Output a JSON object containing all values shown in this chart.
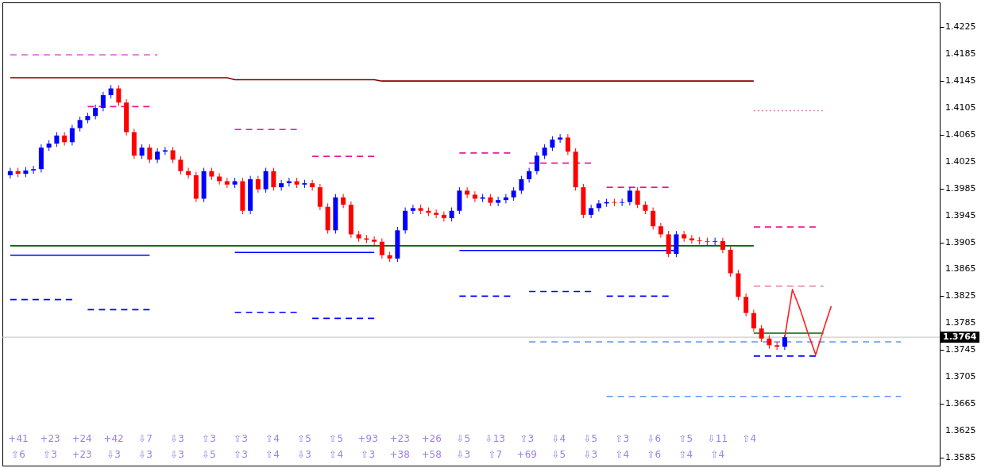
{
  "chart_data": {
    "type": "candlestick",
    "categories": [
      null,
      null,
      null,
      null,
      null,
      null,
      null,
      null,
      null,
      null,
      null,
      null,
      null,
      null,
      null,
      null,
      null,
      null,
      null,
      null,
      null,
      null,
      null,
      null,
      null,
      null,
      null,
      null,
      null,
      null,
      null,
      null,
      null,
      null,
      null,
      null,
      null,
      null,
      null,
      null,
      null,
      null,
      null,
      null,
      null,
      null,
      null,
      null,
      null,
      null,
      null,
      null,
      null,
      null,
      null,
      null,
      null,
      null,
      null,
      null,
      null,
      null,
      null,
      null,
      null,
      null,
      null,
      null,
      null,
      null,
      null,
      null,
      null,
      null,
      null,
      null,
      null,
      null,
      null,
      null,
      null,
      null,
      null,
      null,
      null,
      null,
      null,
      null,
      null,
      null,
      null,
      null,
      null,
      null,
      null,
      null,
      null,
      null,
      null,
      null,
      null,
      null,
      null,
      null,
      null,
      null,
      null,
      null,
      null,
      null,
      null,
      null,
      null,
      null,
      null,
      null,
      null,
      null,
      null,
      null
    ],
    "colors": [
      "#0000ff",
      "#ff0000",
      "#0000ff",
      "#0000ff",
      "#0000ff",
      "#0000ff",
      "#0000ff",
      "#ff0000",
      "#0000ff",
      "#0000ff",
      "#0000ff",
      "#0000ff",
      "#0000ff",
      "#0000ff",
      "#ff0000",
      "#ff0000",
      "#ff0000",
      "#0000ff",
      "#ff0000",
      "#0000ff",
      "#0000ff",
      "#ff0000",
      "#ff0000",
      "#ff0000",
      "#ff0000",
      "#0000ff",
      "#ff0000",
      "#ff0000",
      "#ff0000",
      "#0000ff",
      "#ff0000",
      "#0000ff",
      "#ff0000",
      "#0000ff",
      "#ff0000",
      "#0000ff",
      "#0000ff",
      "#ff0000",
      "#0000ff",
      "#ff0000",
      "#ff0000",
      "#ff0000",
      "#0000ff",
      "#ff0000",
      "#ff0000",
      "#ff0000",
      "#ff0000",
      "#ff0000",
      "#ff0000",
      "#ff0000",
      "#0000ff",
      "#0000ff",
      "#0000ff",
      "#ff0000",
      "#ff0000",
      "#ff0000",
      "#ff0000",
      "#0000ff",
      "#0000ff",
      "#ff0000",
      "#ff0000",
      "#0000ff",
      "#ff0000",
      "#0000ff",
      "#0000ff",
      "#0000ff",
      "#0000ff",
      "#0000ff",
      "#0000ff",
      "#0000ff",
      "#0000ff",
      "#0000ff",
      "#ff0000",
      "#ff0000",
      "#ff0000",
      "#0000ff",
      "#0000ff",
      "#0000ff",
      "#ff0000",
      "#0000ff",
      "#0000ff",
      "#ff0000",
      "#ff0000",
      "#ff0000",
      "#ff0000",
      "#ff0000",
      "#0000ff",
      "#ff0000",
      "#ff0000",
      "#ff0000",
      "#ff0000",
      "#0000ff",
      "#ff0000",
      "#ff0000",
      "#ff0000",
      "#ff0000",
      "#ff0000",
      "#ff0000",
      "#ff0000",
      "#ff0000",
      "#0000ff",
      null,
      null,
      null,
      null,
      null,
      null,
      null,
      null,
      null,
      null,
      null,
      null,
      null,
      null,
      null,
      null,
      null,
      null,
      null
    ],
    "ohlc": [
      [
        1.4005,
        1.4016,
        1.4,
        1.4011
      ],
      [
        1.4011,
        1.4016,
        1.4002,
        1.4007
      ],
      [
        1.4007,
        1.4017,
        1.4002,
        1.4012
      ],
      [
        1.4012,
        1.4019,
        1.4007,
        1.4014
      ],
      [
        1.4014,
        1.4051,
        1.4009,
        1.4046
      ],
      [
        1.4046,
        1.4057,
        1.4041,
        1.4052
      ],
      [
        1.4052,
        1.4069,
        1.4047,
        1.4064
      ],
      [
        1.4064,
        1.4069,
        1.4049,
        1.4054
      ],
      [
        1.4054,
        1.408,
        1.4049,
        1.4075
      ],
      [
        1.4075,
        1.4092,
        1.407,
        1.4087
      ],
      [
        1.4087,
        1.4098,
        1.4082,
        1.4093
      ],
      [
        1.4093,
        1.411,
        1.4088,
        1.4105
      ],
      [
        1.4105,
        1.4129,
        1.41,
        1.4124
      ],
      [
        1.4124,
        1.4139,
        1.4119,
        1.4134
      ],
      [
        1.4134,
        1.4139,
        1.4108,
        1.4113
      ],
      [
        1.4113,
        1.4118,
        1.4064,
        1.4069
      ],
      [
        1.4069,
        1.4074,
        1.4029,
        1.4034
      ],
      [
        1.4034,
        1.4051,
        1.4029,
        1.4046
      ],
      [
        1.4046,
        1.4051,
        1.4023,
        1.4028
      ],
      [
        1.4028,
        1.4045,
        1.4023,
        1.404
      ],
      [
        1.404,
        1.4047,
        1.4035,
        1.4042
      ],
      [
        1.4042,
        1.4047,
        1.4023,
        1.4028
      ],
      [
        1.4028,
        1.4033,
        1.4006,
        1.4011
      ],
      [
        1.4011,
        1.4016,
        1.4,
        1.4005
      ],
      [
        1.4005,
        1.401,
        1.3965,
        1.397
      ],
      [
        1.397,
        1.4016,
        1.3965,
        1.4011
      ],
      [
        1.4011,
        1.4016,
        1.3998,
        1.4003
      ],
      [
        1.4003,
        1.4008,
        1.3991,
        1.3996
      ],
      [
        1.3996,
        1.4001,
        1.3986,
        1.3991
      ],
      [
        1.3991,
        1.4001,
        1.3986,
        1.3996
      ],
      [
        1.3996,
        1.4001,
        1.3947,
        1.3952
      ],
      [
        1.3952,
        1.4004,
        1.3947,
        1.3999
      ],
      [
        1.3999,
        1.4004,
        1.3979,
        1.3984
      ],
      [
        1.3984,
        1.4016,
        1.3979,
        1.4011
      ],
      [
        1.4011,
        1.4016,
        1.3982,
        1.3987
      ],
      [
        1.3987,
        1.3998,
        1.3982,
        1.3993
      ],
      [
        1.3993,
        1.4001,
        1.3988,
        1.3996
      ],
      [
        1.3996,
        1.4001,
        1.3986,
        1.3991
      ],
      [
        1.3991,
        1.3998,
        1.3986,
        1.3993
      ],
      [
        1.3993,
        1.3998,
        1.3982,
        1.3987
      ],
      [
        1.3987,
        1.3992,
        1.3953,
        1.3958
      ],
      [
        1.3958,
        1.3963,
        1.3918,
        1.3923
      ],
      [
        1.3923,
        1.3977,
        1.3918,
        1.3972
      ],
      [
        1.3972,
        1.3977,
        1.3956,
        1.3961
      ],
      [
        1.3961,
        1.3966,
        1.3912,
        1.3917
      ],
      [
        1.3917,
        1.3922,
        1.3906,
        1.3911
      ],
      [
        1.3911,
        1.3916,
        1.3904,
        1.3909
      ],
      [
        1.3909,
        1.3914,
        1.3901,
        1.3906
      ],
      [
        1.3906,
        1.3911,
        1.3881,
        1.3886
      ],
      [
        1.3886,
        1.3891,
        1.3876,
        1.3881
      ],
      [
        1.3881,
        1.3928,
        1.3876,
        1.3923
      ],
      [
        1.3923,
        1.3957,
        1.3918,
        1.3952
      ],
      [
        1.3952,
        1.3961,
        1.3947,
        1.3956
      ],
      [
        1.3956,
        1.3961,
        1.3947,
        1.3952
      ],
      [
        1.3952,
        1.3957,
        1.3944,
        1.3949
      ],
      [
        1.3949,
        1.3954,
        1.3941,
        1.3946
      ],
      [
        1.3946,
        1.3951,
        1.3936,
        1.3941
      ],
      [
        1.3941,
        1.3957,
        1.3936,
        1.3952
      ],
      [
        1.3952,
        1.3987,
        1.3947,
        1.3982
      ],
      [
        1.3982,
        1.3987,
        1.3971,
        1.3976
      ],
      [
        1.3976,
        1.3981,
        1.3965,
        1.397
      ],
      [
        1.397,
        1.3977,
        1.3965,
        1.3972
      ],
      [
        1.3972,
        1.3977,
        1.3959,
        1.3964
      ],
      [
        1.3964,
        1.3973,
        1.3959,
        1.3968
      ],
      [
        1.3968,
        1.3977,
        1.3963,
        1.3972
      ],
      [
        1.3972,
        1.3987,
        1.3967,
        1.3982
      ],
      [
        1.3982,
        1.4004,
        1.3977,
        1.3999
      ],
      [
        1.3999,
        1.4016,
        1.3994,
        1.4011
      ],
      [
        1.4011,
        1.4039,
        1.4006,
        1.4034
      ],
      [
        1.4034,
        1.4051,
        1.4029,
        1.4046
      ],
      [
        1.4046,
        1.4063,
        1.4041,
        1.4058
      ],
      [
        1.4058,
        1.4066,
        1.4053,
        1.4061
      ],
      [
        1.4061,
        1.4066,
        1.4035,
        1.404
      ],
      [
        1.404,
        1.4045,
        1.3982,
        1.3987
      ],
      [
        1.3987,
        1.3992,
        1.3941,
        1.3946
      ],
      [
        1.3946,
        1.3961,
        1.3941,
        1.3956
      ],
      [
        1.3956,
        1.3968,
        1.3951,
        1.3963
      ],
      [
        1.3963,
        1.397,
        1.3958,
        1.3965
      ],
      [
        1.3965,
        1.397,
        1.3959,
        1.3964
      ],
      [
        1.3964,
        1.397,
        1.3959,
        1.3965
      ],
      [
        1.3965,
        1.3987,
        1.396,
        1.3982
      ],
      [
        1.3982,
        1.3987,
        1.3956,
        1.3961
      ],
      [
        1.3961,
        1.3966,
        1.3947,
        1.3952
      ],
      [
        1.3952,
        1.3957,
        1.3924,
        1.3929
      ],
      [
        1.3929,
        1.3934,
        1.3912,
        1.3917
      ],
      [
        1.3917,
        1.3922,
        1.3883,
        1.3888
      ],
      [
        1.3888,
        1.3922,
        1.3883,
        1.3917
      ],
      [
        1.3917,
        1.3922,
        1.3906,
        1.3911
      ],
      [
        1.3911,
        1.3916,
        1.3903,
        1.3908
      ],
      [
        1.3908,
        1.3913,
        1.3902,
        1.3907
      ],
      [
        1.3907,
        1.3912,
        1.3901,
        1.3906
      ],
      [
        1.3906,
        1.3912,
        1.3901,
        1.3907
      ],
      [
        1.3907,
        1.3912,
        1.3889,
        1.3894
      ],
      [
        1.3894,
        1.3899,
        1.3854,
        1.3859
      ],
      [
        1.3859,
        1.3864,
        1.3819,
        1.3824
      ],
      [
        1.3824,
        1.3829,
        1.3795,
        1.38
      ],
      [
        1.38,
        1.3805,
        1.3772,
        1.3777
      ],
      [
        1.3777,
        1.3782,
        1.3757,
        1.3762
      ],
      [
        1.3762,
        1.3767,
        1.3747,
        1.3752
      ],
      [
        1.3752,
        1.3757,
        1.3745,
        1.375
      ],
      [
        1.375,
        1.3767,
        1.3745,
        1.3764
      ],
      null,
      null,
      null,
      null,
      null,
      null,
      null,
      null,
      null,
      null,
      null,
      null,
      null,
      null,
      null,
      null,
      null,
      null,
      null
    ],
    "series": [
      {
        "type": "line",
        "color": "#800000",
        "line_style": "solid",
        "values": [
          1.415,
          1.415,
          1.415,
          1.415,
          1.415,
          1.415,
          1.415,
          1.415,
          1.415,
          1.415,
          1.415,
          1.415,
          1.415,
          1.415,
          1.415,
          1.415,
          1.415,
          1.415,
          1.415,
          1.415,
          1.415,
          1.415,
          1.415,
          1.415,
          1.415,
          1.415,
          1.415,
          1.415,
          1.415,
          1.4147,
          1.4147,
          1.4147,
          1.4147,
          1.4147,
          1.4147,
          1.4147,
          1.4147,
          1.4147,
          1.4147,
          1.4147,
          1.4147,
          1.4147,
          1.4147,
          1.4147,
          1.4147,
          1.4147,
          1.4147,
          1.4147,
          1.4145,
          1.4145,
          1.4145,
          1.4145,
          1.4145,
          1.4145,
          1.4145,
          1.4145,
          1.4145,
          1.4145,
          1.4145,
          1.4145,
          1.4145,
          1.4145,
          1.4145,
          1.4145,
          1.4145,
          1.4145,
          1.4145,
          1.4145,
          1.4145,
          1.4145,
          1.4145,
          1.4145,
          1.4145,
          1.4145,
          1.4145,
          1.4145,
          1.4145,
          1.4145,
          1.4145,
          1.4145,
          1.4145,
          1.4145,
          1.4145,
          1.4145,
          1.4145,
          1.4145,
          1.4145,
          1.4145,
          1.4145,
          1.4145,
          1.4145,
          1.4145,
          1.4145,
          1.4145,
          1.4145,
          1.4145,
          1.4145,
          null,
          null,
          null,
          null,
          null,
          null,
          null,
          null,
          null,
          null,
          null,
          null,
          null,
          null,
          null,
          null,
          null,
          null,
          null,
          null,
          null,
          null,
          null
        ]
      },
      {
        "type": "line",
        "color": "#006400",
        "line_style": "solid",
        "values": [
          1.39,
          1.39,
          1.39,
          1.39,
          1.39,
          1.39,
          1.39,
          1.39,
          1.39,
          1.39,
          1.39,
          1.39,
          1.39,
          1.39,
          1.39,
          1.39,
          1.39,
          1.39,
          1.39,
          1.39,
          1.39,
          1.39,
          1.39,
          1.39,
          1.39,
          1.39,
          1.39,
          1.39,
          1.39,
          1.39,
          1.39,
          1.39,
          1.39,
          1.39,
          1.39,
          1.39,
          1.39,
          1.39,
          1.39,
          1.39,
          1.39,
          1.39,
          1.39,
          1.39,
          1.39,
          1.39,
          1.39,
          1.39,
          1.39,
          1.39,
          1.39,
          1.39,
          1.39,
          1.39,
          1.39,
          1.39,
          1.39,
          1.39,
          1.39,
          1.39,
          1.39,
          1.39,
          1.39,
          1.39,
          1.39,
          1.39,
          1.39,
          1.39,
          1.39,
          1.39,
          1.39,
          1.39,
          1.39,
          1.39,
          1.39,
          1.39,
          1.39,
          1.39,
          1.39,
          1.39,
          1.39,
          1.39,
          1.39,
          1.39,
          1.39,
          1.39,
          1.39,
          1.39,
          1.39,
          1.39,
          1.39,
          1.39,
          1.39,
          1.39,
          1.39,
          1.39,
          1.39,
          null,
          null,
          null,
          null,
          null,
          null,
          null,
          null,
          null,
          null,
          null,
          null,
          null,
          null,
          null,
          null,
          null,
          null,
          null,
          null,
          null,
          null,
          null
        ]
      },
      {
        "type": "line",
        "color": "#e8189a",
        "line_style": "dashed",
        "values": [
          null,
          null,
          null,
          null,
          null,
          null,
          null,
          null,
          null,
          null,
          1.4107,
          1.4107,
          1.4107,
          1.4107,
          1.4107,
          1.4107,
          1.4107,
          1.4107,
          1.4107,
          null,
          null,
          null,
          null,
          null,
          null,
          null,
          null,
          null,
          null,
          1.4073,
          1.4073,
          1.4073,
          1.4073,
          1.4073,
          1.4073,
          1.4073,
          1.4073,
          1.4073,
          null,
          1.4033,
          1.4033,
          1.4033,
          1.4033,
          1.4033,
          1.4033,
          1.4033,
          1.4033,
          1.4033,
          null,
          null,
          null,
          null,
          null,
          null,
          null,
          null,
          null,
          null,
          1.4038,
          1.4038,
          1.4038,
          1.4038,
          1.4038,
          1.4038,
          1.4038,
          1.4038,
          null,
          1.4023,
          1.4023,
          1.4023,
          1.4023,
          1.4023,
          1.4023,
          1.4023,
          1.4023,
          1.4023,
          null,
          1.3987,
          1.3987,
          1.3987,
          1.3987,
          1.3987,
          1.3987,
          1.3987,
          1.3987,
          1.3987,
          null,
          null,
          null,
          null,
          null,
          null,
          null,
          null,
          null,
          null,
          1.3928,
          1.3928,
          1.3928,
          1.3928,
          1.3928,
          1.3928,
          1.3928,
          1.3928,
          1.3928,
          null,
          null,
          null,
          null,
          null,
          null,
          null,
          null,
          null,
          null,
          null,
          null,
          null,
          null,
          null
        ]
      },
      {
        "type": "line",
        "color": "#0000ff",
        "line_style": "dashed",
        "values": [
          1.382,
          1.382,
          1.382,
          1.382,
          1.382,
          1.382,
          1.382,
          1.382,
          1.382,
          null,
          1.3805,
          1.3805,
          1.3805,
          1.3805,
          1.3805,
          1.3805,
          1.3805,
          1.3805,
          1.3805,
          null,
          null,
          null,
          null,
          null,
          null,
          null,
          null,
          null,
          null,
          1.3801,
          1.3801,
          1.3801,
          1.3801,
          1.3801,
          1.3801,
          1.3801,
          1.3801,
          1.3801,
          null,
          1.3792,
          1.3792,
          1.3792,
          1.3792,
          1.3792,
          1.3792,
          1.3792,
          1.3792,
          1.3792,
          null,
          null,
          null,
          null,
          null,
          null,
          null,
          null,
          null,
          null,
          1.3825,
          1.3825,
          1.3825,
          1.3825,
          1.3825,
          1.3825,
          1.3825,
          1.3825,
          null,
          1.3832,
          1.3832,
          1.3832,
          1.3832,
          1.3832,
          1.3832,
          1.3832,
          1.3832,
          1.3832,
          null,
          1.3825,
          1.3825,
          1.3825,
          1.3825,
          1.3825,
          1.3825,
          1.3825,
          1.3825,
          1.3825,
          null,
          null,
          null,
          null,
          null,
          null,
          null,
          null,
          null,
          null,
          1.3736,
          1.3736,
          1.3736,
          1.3736,
          1.3736,
          1.3736,
          1.3736,
          1.3736,
          1.3736,
          null,
          null,
          null,
          null,
          null,
          null,
          null,
          null,
          null,
          null,
          null,
          null,
          null,
          null,
          null
        ]
      },
      {
        "type": "line",
        "color": "#0000ff",
        "line_style": "solid",
        "values": [
          1.3886,
          1.3886,
          1.3886,
          1.3886,
          1.3886,
          1.3886,
          1.3886,
          1.3886,
          1.3886,
          1.3886,
          1.3886,
          1.3886,
          1.3886,
          1.3886,
          1.3886,
          1.3886,
          1.3886,
          1.3886,
          1.3886,
          null,
          null,
          null,
          null,
          null,
          null,
          null,
          null,
          null,
          null,
          1.389,
          1.389,
          1.389,
          1.389,
          1.389,
          1.389,
          1.389,
          1.389,
          1.389,
          1.389,
          1.389,
          1.389,
          1.389,
          1.389,
          1.389,
          1.389,
          1.389,
          1.389,
          1.389,
          null,
          null,
          null,
          null,
          null,
          null,
          null,
          null,
          null,
          null,
          1.3893,
          1.3893,
          1.3893,
          1.3893,
          1.3893,
          1.3893,
          1.3893,
          1.3893,
          1.3893,
          1.3893,
          1.3893,
          1.3893,
          1.3893,
          1.3893,
          1.3893,
          1.3893,
          1.3893,
          1.3893,
          1.3893,
          1.3893,
          1.3893,
          1.3893,
          1.3893,
          1.3893,
          1.3893,
          1.3893,
          1.3893,
          1.3893,
          1.3893,
          null,
          null,
          null,
          null,
          null,
          null,
          null,
          null,
          null,
          null,
          null,
          null,
          null,
          null,
          null,
          null,
          null,
          null,
          null,
          null,
          null,
          null,
          null,
          null,
          null,
          null,
          null,
          null,
          null,
          null,
          null,
          null,
          null
        ]
      },
      {
        "type": "line",
        "color": "#da70d6",
        "line_style": "dashed",
        "values": [
          1.4184,
          1.4184,
          1.4184,
          1.4184,
          1.4184,
          1.4184,
          1.4184,
          1.4184,
          1.4184,
          1.4184,
          1.4184,
          1.4184,
          1.4184,
          1.4184,
          1.4184,
          1.4184,
          1.4184,
          1.4184,
          1.4184,
          1.4184,
          null,
          null,
          null,
          null,
          null,
          null,
          null,
          null,
          null,
          null,
          null,
          null,
          null,
          null,
          null,
          null,
          null,
          null,
          null,
          null,
          null,
          null,
          null,
          null,
          null,
          null,
          null,
          null,
          null,
          null,
          null,
          null,
          null,
          null,
          null,
          null,
          null,
          null,
          null,
          null,
          null,
          null,
          null,
          null,
          null,
          null,
          null,
          null,
          null,
          null,
          null,
          null,
          null,
          null,
          null,
          null,
          null,
          null,
          null,
          null,
          null,
          null,
          null,
          null,
          null,
          null,
          null,
          null,
          null,
          null,
          null,
          null,
          null,
          null,
          null,
          null,
          null,
          null,
          null,
          null,
          null,
          null,
          null,
          null,
          null,
          null,
          null,
          null,
          null,
          null,
          null,
          null,
          null,
          null,
          null,
          null,
          null,
          null,
          null,
          null
        ]
      },
      {
        "type": "line",
        "color": "#006400",
        "line_style": "solid",
        "values": [
          null,
          null,
          null,
          null,
          null,
          null,
          null,
          null,
          null,
          null,
          null,
          null,
          null,
          null,
          null,
          null,
          null,
          null,
          null,
          null,
          null,
          null,
          null,
          null,
          null,
          null,
          null,
          null,
          null,
          null,
          null,
          null,
          null,
          null,
          null,
          null,
          null,
          null,
          null,
          null,
          null,
          null,
          null,
          null,
          null,
          null,
          null,
          null,
          null,
          null,
          null,
          null,
          null,
          null,
          null,
          null,
          null,
          null,
          null,
          null,
          null,
          null,
          null,
          null,
          null,
          null,
          null,
          null,
          null,
          null,
          null,
          null,
          null,
          null,
          null,
          null,
          null,
          null,
          null,
          null,
          null,
          null,
          null,
          null,
          null,
          null,
          null,
          null,
          null,
          null,
          null,
          null,
          null,
          null,
          null,
          null,
          1.377,
          1.377,
          1.377,
          1.377,
          1.377,
          1.377,
          1.377,
          1.377,
          1.377,
          1.377,
          null,
          null,
          null,
          null,
          null,
          null,
          null,
          null,
          null,
          null,
          null,
          null,
          null,
          null
        ]
      },
      {
        "type": "line",
        "color": "#6495ed",
        "line_style": "dashed",
        "values": [
          null,
          null,
          null,
          null,
          null,
          null,
          null,
          null,
          null,
          null,
          null,
          null,
          null,
          null,
          null,
          null,
          null,
          null,
          null,
          null,
          null,
          null,
          null,
          null,
          null,
          null,
          null,
          null,
          null,
          null,
          null,
          null,
          null,
          null,
          null,
          null,
          null,
          null,
          null,
          null,
          null,
          null,
          null,
          null,
          null,
          null,
          null,
          null,
          null,
          null,
          null,
          null,
          null,
          null,
          null,
          null,
          null,
          null,
          null,
          null,
          null,
          null,
          null,
          null,
          null,
          null,
          null,
          1.3757,
          1.3757,
          1.3757,
          1.3757,
          1.3757,
          1.3757,
          1.3757,
          1.3757,
          1.3757,
          1.3757,
          1.3757,
          1.3757,
          1.3757,
          1.3757,
          1.3757,
          1.3757,
          1.3757,
          1.3757,
          1.3757,
          1.3757,
          1.3757,
          1.3757,
          1.3757,
          1.3757,
          1.3757,
          1.3757,
          1.3757,
          1.3757,
          1.3757,
          1.3757,
          1.3757,
          1.3757,
          1.3757,
          1.3757,
          1.3757,
          1.3757,
          1.3757,
          1.3757,
          1.3757,
          1.3757,
          1.3757,
          1.3757,
          1.3757,
          1.3757,
          1.3757,
          1.3757,
          1.3757,
          1.3757,
          1.3757,
          null,
          null,
          null,
          null
        ]
      },
      {
        "type": "line",
        "color": "#6495ed",
        "line_style": "dashed",
        "values": [
          null,
          null,
          null,
          null,
          null,
          null,
          null,
          null,
          null,
          null,
          null,
          null,
          null,
          null,
          null,
          null,
          null,
          null,
          null,
          null,
          null,
          null,
          null,
          null,
          null,
          null,
          null,
          null,
          null,
          null,
          null,
          null,
          null,
          null,
          null,
          null,
          null,
          null,
          null,
          null,
          null,
          null,
          null,
          null,
          null,
          null,
          null,
          null,
          null,
          null,
          null,
          null,
          null,
          null,
          null,
          null,
          null,
          null,
          null,
          null,
          null,
          null,
          null,
          null,
          null,
          null,
          null,
          null,
          null,
          null,
          null,
          null,
          null,
          null,
          null,
          null,
          null,
          1.3676,
          1.3676,
          1.3676,
          1.3676,
          1.3676,
          1.3676,
          1.3676,
          1.3676,
          1.3676,
          1.3676,
          1.3676,
          1.3676,
          1.3676,
          1.3676,
          1.3676,
          1.3676,
          1.3676,
          1.3676,
          1.3676,
          1.3676,
          1.3676,
          1.3676,
          1.3676,
          1.3676,
          1.3676,
          1.3676,
          1.3676,
          1.3676,
          1.3676,
          1.3676,
          1.3676,
          1.3676,
          1.3676,
          1.3676,
          1.3676,
          1.3676,
          1.3676,
          1.3676,
          1.3676,
          null,
          null,
          null,
          null
        ]
      },
      {
        "type": "line",
        "color": "#e87aa8",
        "line_style": "dotted",
        "values": [
          null,
          null,
          null,
          null,
          null,
          null,
          null,
          null,
          null,
          null,
          null,
          null,
          null,
          null,
          null,
          null,
          null,
          null,
          null,
          null,
          null,
          null,
          null,
          null,
          null,
          null,
          null,
          null,
          null,
          null,
          null,
          null,
          null,
          null,
          null,
          null,
          null,
          null,
          null,
          null,
          null,
          null,
          null,
          null,
          null,
          null,
          null,
          null,
          null,
          null,
          null,
          null,
          null,
          null,
          null,
          null,
          null,
          null,
          null,
          null,
          null,
          null,
          null,
          null,
          null,
          null,
          null,
          null,
          null,
          null,
          null,
          null,
          null,
          null,
          null,
          null,
          null,
          null,
          null,
          null,
          null,
          null,
          null,
          null,
          null,
          null,
          null,
          null,
          null,
          null,
          null,
          null,
          null,
          null,
          null,
          null,
          1.4101,
          1.4101,
          1.4101,
          1.4101,
          1.4101,
          1.4101,
          1.4101,
          1.4101,
          1.4101,
          1.4101,
          null,
          null,
          null,
          null,
          null,
          null,
          null,
          null,
          null,
          null,
          null,
          null,
          null,
          null
        ]
      },
      {
        "type": "line",
        "color": "#e87aa8",
        "line_style": "dashed",
        "values": [
          null,
          null,
          null,
          null,
          null,
          null,
          null,
          null,
          null,
          null,
          null,
          null,
          null,
          null,
          null,
          null,
          null,
          null,
          null,
          null,
          null,
          null,
          null,
          null,
          null,
          null,
          null,
          null,
          null,
          null,
          null,
          null,
          null,
          null,
          null,
          null,
          null,
          null,
          null,
          null,
          null,
          null,
          null,
          null,
          null,
          null,
          null,
          null,
          null,
          null,
          null,
          null,
          null,
          null,
          null,
          null,
          null,
          null,
          null,
          null,
          null,
          null,
          null,
          null,
          null,
          null,
          null,
          null,
          null,
          null,
          null,
          null,
          null,
          null,
          null,
          null,
          null,
          null,
          null,
          null,
          null,
          null,
          null,
          null,
          null,
          null,
          null,
          null,
          null,
          null,
          null,
          null,
          null,
          null,
          null,
          null,
          1.384,
          1.384,
          1.384,
          1.384,
          1.384,
          1.384,
          1.384,
          1.384,
          1.384,
          1.384,
          null,
          null,
          null,
          null,
          null,
          null,
          null,
          null,
          null,
          null,
          null,
          null,
          null,
          null
        ]
      },
      {
        "type": "line",
        "color": "#ff2020",
        "line_style": "solid",
        "values": [
          null,
          null,
          null,
          null,
          null,
          null,
          null,
          null,
          null,
          null,
          null,
          null,
          null,
          null,
          null,
          null,
          null,
          null,
          null,
          null,
          null,
          null,
          null,
          null,
          null,
          null,
          null,
          null,
          null,
          null,
          null,
          null,
          null,
          null,
          null,
          null,
          null,
          null,
          null,
          null,
          null,
          null,
          null,
          null,
          null,
          null,
          null,
          null,
          null,
          null,
          null,
          null,
          null,
          null,
          null,
          null,
          null,
          null,
          null,
          null,
          null,
          null,
          null,
          null,
          null,
          null,
          null,
          null,
          null,
          null,
          null,
          null,
          null,
          null,
          null,
          null,
          null,
          null,
          null,
          null,
          null,
          null,
          null,
          null,
          null,
          null,
          null,
          null,
          null,
          null,
          null,
          null,
          null,
          null,
          null,
          null,
          null,
          null,
          null,
          null,
          1.3764,
          1.3835,
          1.3805,
          1.377,
          1.3738,
          1.3775,
          1.381,
          null,
          null,
          null,
          null,
          null,
          null,
          null,
          null,
          null,
          null,
          null,
          null,
          null
        ]
      }
    ],
    "ref_lines": [
      {
        "axis": "y",
        "value": 1.3764,
        "label": "1.3764",
        "color": "#c0c0c0"
      }
    ],
    "ylim": [
      1.3573,
      1.4262
    ],
    "yticks": [
      1.4225,
      1.4185,
      1.4145,
      1.4105,
      1.4065,
      1.4025,
      1.3985,
      1.3945,
      1.3905,
      1.3865,
      1.3825,
      1.3785,
      1.3745,
      1.3705,
      1.3665,
      1.3625,
      1.3585
    ],
    "tick_labels": "y",
    "grid": false,
    "annotations": [
      "+41",
      "+23",
      "+24",
      "+42",
      "⇩7",
      "⇩3",
      "⇧3",
      "⇧3",
      "⇧4",
      "⇧5",
      "⇧5",
      "+93",
      "+23",
      "+26",
      "⇩5",
      "⇩13",
      "⇧3",
      "⇩4",
      "⇩5",
      "⇧3",
      "⇩6",
      "⇧5",
      "⇩11",
      "⇧4",
      "⇧6",
      "⇧3",
      "+23",
      "⇩3",
      "⇩3",
      "⇩3",
      "⇩5",
      "⇧3",
      "⇧4",
      "⇩3",
      "⇧4",
      "⇧3",
      "+38",
      "+58",
      "⇩3",
      "⇧7",
      "+69",
      "⇩5",
      "⇩3",
      "⇧4",
      "⇧6",
      "⇧4",
      "⇧4"
    ]
  }
}
